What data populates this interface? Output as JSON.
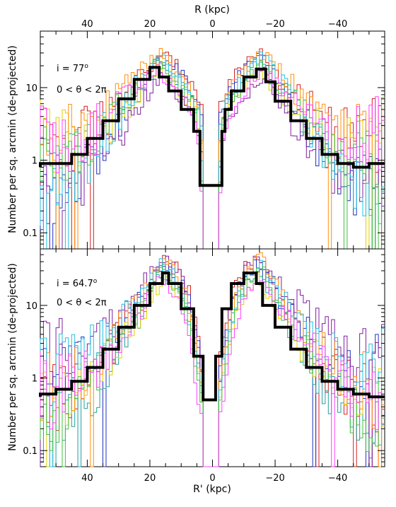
{
  "chart_data": [
    {
      "type": "line",
      "panel": "top",
      "annotation_lines": [
        "i = 77",
        "0 < θ < 2π"
      ],
      "ylabel": "Number per sq. arcmin (de-projected)",
      "top_xlabel": "R (kpc)",
      "xlabel": "",
      "xlim": [
        55,
        -55
      ],
      "ylim": [
        0.06,
        60
      ],
      "yscale": "log",
      "xticks": [
        40,
        20,
        0,
        -20,
        -40
      ],
      "yticks": [
        0.1,
        1,
        10
      ],
      "ytick_labels": [
        "0.1",
        "1",
        "10"
      ],
      "series": [
        {
          "name": "",
          "style": "thick-black-step",
          "x": [
            -55,
            -50,
            -45,
            -40,
            -35,
            -30,
            -25,
            -20,
            -17,
            -14,
            -10,
            -6,
            -4,
            -3,
            -1,
            0,
            1,
            3,
            4,
            6,
            10,
            14,
            17,
            20,
            25,
            30,
            35,
            40,
            45,
            50,
            55
          ],
          "y": [
            0.9,
            0.8,
            0.9,
            1.2,
            2.0,
            3.5,
            6.5,
            12,
            18,
            14,
            9,
            5,
            2.5,
            0.45,
            0.45,
            0.45,
            0.45,
            0.45,
            2.5,
            5,
            9,
            14,
            19,
            13,
            7,
            3.5,
            2.0,
            1.2,
            0.9,
            0.9,
            0.8
          ]
        }
      ]
    },
    {
      "type": "line",
      "panel": "bottom",
      "annotation_lines": [
        "i = 64.7",
        "0 < θ < 2π"
      ],
      "ylabel": "Number per sq. arcmin (de-projected)",
      "xlabel": "R' (kpc)",
      "xlim": [
        55,
        -55
      ],
      "ylim": [
        0.06,
        60
      ],
      "yscale": "log",
      "xticks": [
        40,
        20,
        0,
        -20,
        -40
      ],
      "xtick_labels": [
        "40",
        "20",
        "0",
        "−20",
        "−40"
      ],
      "yticks": [
        0.1,
        1,
        10
      ],
      "ytick_labels": [
        "0.1",
        "1",
        "10"
      ],
      "series": [
        {
          "name": "",
          "style": "thick-black-step",
          "x": [
            -55,
            -50,
            -45,
            -40,
            -35,
            -30,
            -25,
            -20,
            -16,
            -14,
            -10,
            -6,
            -3,
            -1,
            0,
            1,
            3,
            6,
            10,
            14,
            16,
            20,
            25,
            30,
            35,
            40,
            45,
            50,
            55
          ],
          "y": [
            0.55,
            0.6,
            0.7,
            0.9,
            1.4,
            2.5,
            5,
            10,
            20,
            28,
            20,
            9,
            2,
            0.5,
            0.5,
            0.5,
            2,
            9,
            20,
            28,
            20,
            10,
            5,
            2.5,
            1.4,
            0.9,
            0.7,
            0.6,
            0.55
          ]
        }
      ]
    }
  ],
  "colors": {
    "overlay_series": [
      "#d22020",
      "#2030c0",
      "#20a0a0",
      "#e0d000",
      "#8020a0",
      "#ff9010",
      "#20c0e0",
      "#40c040",
      "#ff40ff"
    ]
  }
}
